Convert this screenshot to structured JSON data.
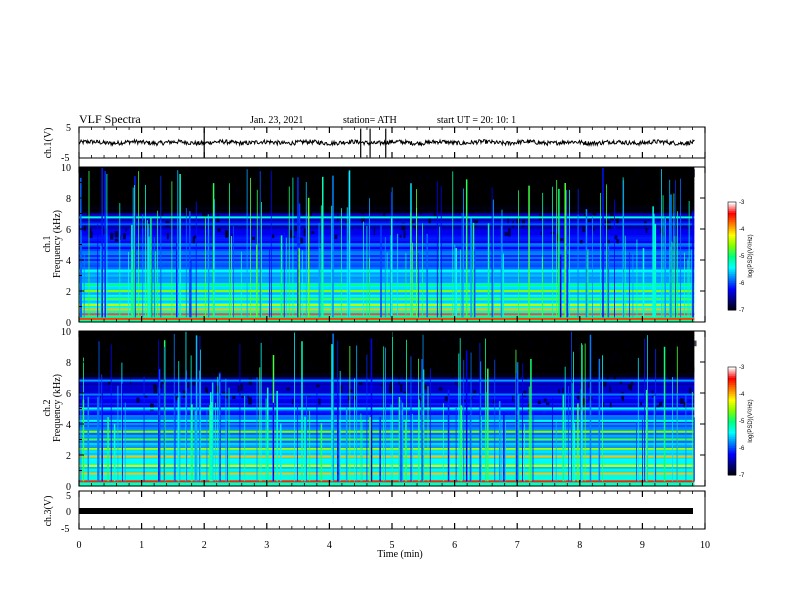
{
  "header": {
    "title": "VLF Spectra",
    "date": "Jan. 23, 2021",
    "station": "station= ATH",
    "start": "start  UT  =   20: 10: 1"
  },
  "chart_data": [
    {
      "type": "line",
      "id": "ch1-waveform",
      "ylabel": "ch.1(V)",
      "ylim": [
        -5,
        5
      ],
      "y_ticks": [
        "5",
        "-5"
      ],
      "xlim": [
        0,
        10
      ],
      "series": [
        {
          "baseline": 0,
          "spike_times_min": [
            2.0,
            4.5,
            4.65,
            4.9
          ]
        }
      ]
    },
    {
      "type": "heatmap",
      "id": "ch1-spectrogram",
      "ylabel": "ch.1\nFrequency  (kHz)",
      "ylim": [
        0,
        10
      ],
      "y_ticks": [
        "0",
        "2",
        "4",
        "6",
        "8",
        "10"
      ],
      "xlim": [
        0,
        9.83
      ],
      "colorbar": {
        "label": "log(PSD)(V²/Hz)",
        "range": [
          -7,
          -3
        ],
        "ticks": [
          "-3",
          "-4",
          "-5",
          "-6",
          "-7"
        ]
      },
      "bands_khz": [
        {
          "f": 0.2,
          "level": -3.6
        },
        {
          "f": 0.5,
          "level": -3.3
        },
        {
          "f": 0.8,
          "level": -4.0
        },
        {
          "f": 1.1,
          "level": -4.4
        },
        {
          "f": 1.5,
          "level": -4.8
        },
        {
          "f": 2.0,
          "level": -4.6
        },
        {
          "f": 2.4,
          "level": -5.0
        },
        {
          "f": 3.0,
          "level": -5.6
        },
        {
          "f": 3.3,
          "level": -5.4
        },
        {
          "f": 5.0,
          "level": -5.8
        },
        {
          "f": 6.3,
          "level": -5.9
        },
        {
          "f": 6.75,
          "level": -5.3
        }
      ]
    },
    {
      "type": "heatmap",
      "id": "ch2-spectrogram",
      "ylabel": "ch.2\nFrequency  (kHz)",
      "ylim": [
        0,
        10
      ],
      "y_ticks": [
        "0",
        "2",
        "4",
        "6",
        "8",
        "10"
      ],
      "xlim": [
        0,
        9.83
      ],
      "colorbar": {
        "label": "log(PSD)(V²/Hz)",
        "range": [
          -7,
          -3
        ],
        "ticks": [
          "-3",
          "-4",
          "-5",
          "-6",
          "-7"
        ]
      },
      "bands_khz": [
        {
          "f": 0.3,
          "level": -3.5
        },
        {
          "f": 0.8,
          "level": -4.0
        },
        {
          "f": 1.3,
          "level": -4.3
        },
        {
          "f": 1.9,
          "level": -4.0
        },
        {
          "f": 2.4,
          "level": -4.5
        },
        {
          "f": 3.0,
          "level": -4.8
        },
        {
          "f": 3.5,
          "level": -4.6
        },
        {
          "f": 4.2,
          "level": -5.3
        },
        {
          "f": 5.0,
          "level": -5.4
        },
        {
          "f": 5.9,
          "level": -5.8
        },
        {
          "f": 6.8,
          "level": -5.7
        }
      ]
    },
    {
      "type": "line",
      "id": "ch3-waveform",
      "ylabel": "ch.3(V)",
      "ylim": [
        -5,
        5
      ],
      "y_ticks": [
        "5",
        "0",
        "-5"
      ],
      "xlim": [
        0,
        10
      ],
      "series": [
        {
          "baseline": -1
        }
      ]
    }
  ],
  "x_axis": {
    "label": "Time  (min)",
    "ticks": [
      "0",
      "1",
      "2",
      "3",
      "4",
      "5",
      "6",
      "7",
      "8",
      "9",
      "10"
    ],
    "range": [
      0,
      10
    ]
  },
  "colors": {
    "frame": "#000000",
    "waveform": "#000000",
    "colormap": [
      "#000000",
      "#00007f",
      "#0000ff",
      "#0080ff",
      "#00ffff",
      "#00ff80",
      "#80ff00",
      "#ffff00",
      "#ff8000",
      "#ff0000",
      "#ffffff"
    ]
  }
}
